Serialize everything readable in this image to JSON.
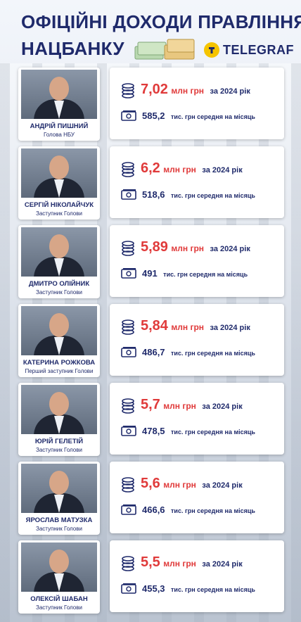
{
  "header": {
    "title_line1": "ОФІЦІЙНІ ДОХОДИ ПРАВЛІННЯ",
    "title_line2": "НАЦБАНКУ",
    "logo_text": "TELEGRAF"
  },
  "labels": {
    "annual_unit": "млн грн",
    "annual_period": "за 2024 рік",
    "monthly_text": "тис. грн середня на місяць"
  },
  "icons": {
    "annual": "coin-stack-icon",
    "monthly": "banknote-icon",
    "logo": "telegraf-logo-icon"
  },
  "colors": {
    "accent_red": "#e03a3a",
    "navy": "#1f2a6b",
    "logo_yellow": "#f5c400"
  },
  "people": [
    {
      "name": "АНДРІЙ ПИШНИЙ",
      "role": "Голова НБУ",
      "annual": "7,02",
      "monthly": "585,2"
    },
    {
      "name": "СЕРГІЙ НІКОЛАЙЧУК",
      "role": "Заступник Голови",
      "annual": "6,2",
      "monthly": "518,6"
    },
    {
      "name": "ДМИТРО ОЛІЙНИК",
      "role": "Заступник Голови",
      "annual": "5,89",
      "monthly": "491"
    },
    {
      "name": "КАТЕРИНА РОЖКОВА",
      "role": "Перший заступник Голови",
      "annual": "5,84",
      "monthly": "486,7"
    },
    {
      "name": "ЮРІЙ ГЕЛЕТІЙ",
      "role": "Заступник Голови",
      "annual": "5,7",
      "monthly": "478,5"
    },
    {
      "name": "ЯРОСЛАВ МАТУЗКА",
      "role": "Заступник Голови",
      "annual": "5,6",
      "monthly": "466,6"
    },
    {
      "name": "ОЛЕКСІЙ ШАБАН",
      "role": "Заступник Голови",
      "annual": "5,5",
      "monthly": "455,3"
    }
  ]
}
